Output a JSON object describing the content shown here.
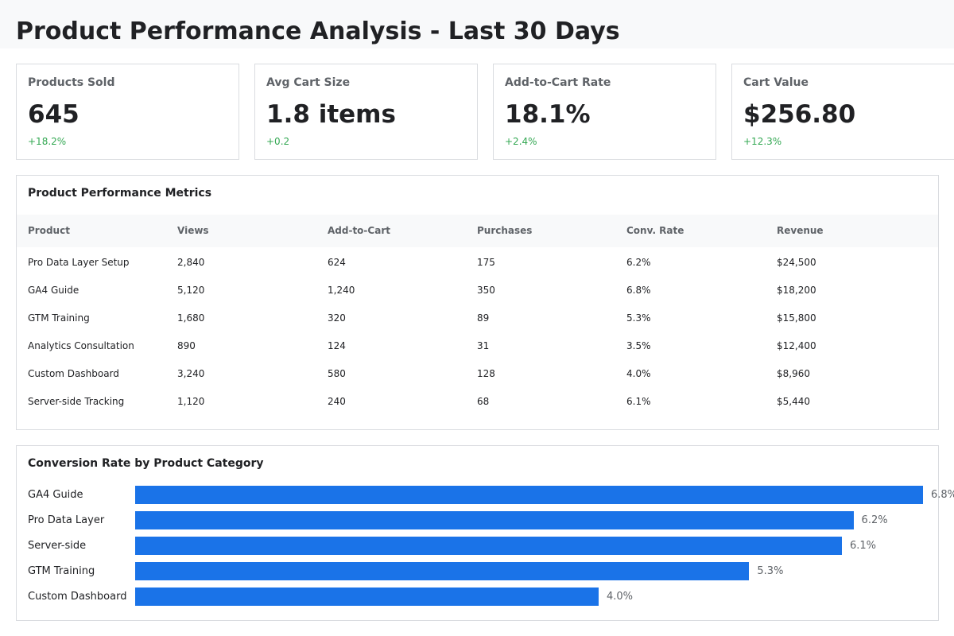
{
  "title": "Product Performance Analysis - Last 30 Days",
  "kpis": [
    {
      "label": "Products Sold",
      "value": "645",
      "change": "+18.2%"
    },
    {
      "label": "Avg Cart Size",
      "value": "1.8 items",
      "change": "+0.2"
    },
    {
      "label": "Add-to-Cart Rate",
      "value": "18.1%",
      "change": "+2.4%"
    },
    {
      "label": "Cart Value",
      "value": "$256.80",
      "change": "+12.3%"
    }
  ],
  "positive_color": "#34a853",
  "table": {
    "title": "Product Performance Metrics",
    "columns": [
      "Product",
      "Views",
      "Add-to-Cart",
      "Purchases",
      "Conv. Rate",
      "Revenue"
    ],
    "rows": [
      [
        "Pro Data Layer Setup",
        "2,840",
        "624",
        "175",
        "6.2%",
        "$24,500"
      ],
      [
        "GA4 Guide",
        "5,120",
        "1,240",
        "350",
        "6.8%",
        "$18,200"
      ],
      [
        "GTM Training",
        "1,680",
        "320",
        "89",
        "5.3%",
        "$15,800"
      ],
      [
        "Analytics Consultation",
        "890",
        "124",
        "31",
        "3.5%",
        "$12,400"
      ],
      [
        "Custom Dashboard",
        "3,240",
        "580",
        "128",
        "4.0%",
        "$8,960"
      ],
      [
        "Server-side Tracking",
        "1,120",
        "240",
        "68",
        "6.1%",
        "$5,440"
      ]
    ]
  },
  "chart_data": {
    "type": "bar",
    "orientation": "horizontal",
    "title": "Conversion Rate by Product Category",
    "categories": [
      "GA4 Guide",
      "Pro Data Layer",
      "Server-side",
      "GTM Training",
      "Custom Dashboard"
    ],
    "values": [
      6.8,
      6.2,
      6.1,
      5.3,
      4.0
    ],
    "labels": [
      "6.8%",
      "6.2%",
      "6.1%",
      "5.3%",
      "4.0%"
    ],
    "unit": "%",
    "xlim": [
      0,
      6.8
    ],
    "grid": false,
    "bar_color": "#1a73e8"
  }
}
